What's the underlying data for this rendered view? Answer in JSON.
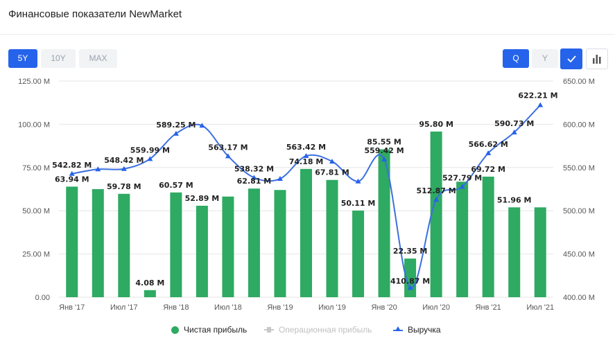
{
  "header": {
    "title": "Финансовые показатели NewMarket"
  },
  "range_buttons": [
    {
      "label": "5Y",
      "active": true
    },
    {
      "label": "10Y",
      "active": false
    },
    {
      "label": "MAX",
      "active": false
    }
  ],
  "period_buttons": [
    {
      "label": "Q",
      "active": true
    },
    {
      "label": "Y",
      "active": false
    }
  ],
  "view_buttons": [
    {
      "icon": "check-icon",
      "active": true
    },
    {
      "icon": "bar-chart-icon",
      "active": false
    }
  ],
  "colors": {
    "accent": "#2563eb",
    "bars": "#2eaa62",
    "line": "#3b6fe0",
    "disabled": "#c8c8c8"
  },
  "chart_data": {
    "type": "bar",
    "x_tick_labels": [
      "Янв '17",
      "Июл '17",
      "Янв '18",
      "Июл '18",
      "Янв '19",
      "Июл '19",
      "Янв '20",
      "Июл '20",
      "Янв '21",
      "Июл '21"
    ],
    "left_axis": {
      "min": 0,
      "max": 125,
      "ticks": [
        "0.00",
        "25.00 M",
        "50.00 M",
        "75.00 M",
        "100.00 M",
        "125.00 M"
      ],
      "tick_values": [
        0,
        25,
        50,
        75,
        100,
        125
      ]
    },
    "right_axis": {
      "min": 400,
      "max": 650,
      "ticks": [
        "400.00 M",
        "450.00 M",
        "500.00 M",
        "550.00 M",
        "600.00 M",
        "650.00 M"
      ],
      "tick_values": [
        400,
        450,
        500,
        550,
        600,
        650
      ]
    },
    "series": [
      {
        "name": "Чистая прибыль",
        "kind": "bar",
        "axis": "left",
        "values": [
          63.94,
          62.5,
          59.78,
          4.08,
          60.57,
          52.89,
          58.2,
          62.81,
          62.0,
          74.18,
          67.81,
          50.11,
          85.55,
          22.35,
          95.8,
          66.8,
          69.72,
          51.96,
          51.96
        ],
        "labels": [
          "63.94 M",
          "",
          "59.78 M",
          "4.08 M",
          "60.57 M",
          "52.89 M",
          "",
          "62.81 M",
          "",
          "74.18 M",
          "67.81 M",
          "50.11 M",
          "85.55 M",
          "22.35 M",
          "95.80 M",
          "",
          "69.72 M",
          "51.96 M",
          ""
        ]
      },
      {
        "name": "Операционная прибыль",
        "kind": "line",
        "disabled": true,
        "values": []
      },
      {
        "name": "Выручка",
        "kind": "line",
        "axis": "right",
        "values": [
          542.82,
          548.0,
          548.42,
          559.99,
          589.25,
          598.5,
          563.17,
          538.32,
          537.0,
          563.42,
          557.0,
          534.0,
          559.42,
          410.87,
          512.87,
          527.79,
          566.62,
          590.73,
          622.21
        ],
        "labels": [
          "542.82 M",
          "",
          "548.42 M",
          "559.99 M",
          "589.25 M",
          "",
          "563.17 M",
          "538.32 M",
          "",
          "563.42 M",
          "",
          "",
          "559.42 M",
          "410.87 M",
          "512.87 M",
          "527.79 M",
          "566.62 M",
          "590.73 M",
          "622.21 M"
        ]
      }
    ],
    "grid": true,
    "legend": "bottom-center"
  }
}
